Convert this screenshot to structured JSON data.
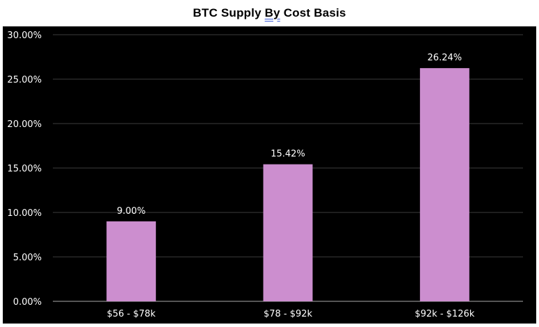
{
  "chart_data": {
    "type": "bar",
    "title": "BTC Supply By Cost Basis",
    "title_parts": [
      "BTC Supply ",
      "By",
      " Cost Basis"
    ],
    "categories": [
      "$56 - $78k",
      "$78 - $92k",
      "$92k - $126k"
    ],
    "values": [
      9.0,
      15.42,
      26.24
    ],
    "data_labels": [
      "9.00%",
      "15.42%",
      "26.24%"
    ],
    "ylim": [
      0,
      30
    ],
    "yticks": [
      0,
      5,
      10,
      15,
      20,
      25,
      30
    ],
    "ytick_labels": [
      "0.00%",
      "5.00%",
      "10.00%",
      "15.00%",
      "20.00%",
      "25.00%",
      "30.00%"
    ],
    "xlabel": "",
    "ylabel": "",
    "grid": true,
    "legend": "none",
    "colors": {
      "background": "#000000",
      "bar": "#cc8ecf",
      "grid": "#3c3c3c",
      "axis": "#8a8a8a",
      "text": "#ffffff"
    }
  }
}
